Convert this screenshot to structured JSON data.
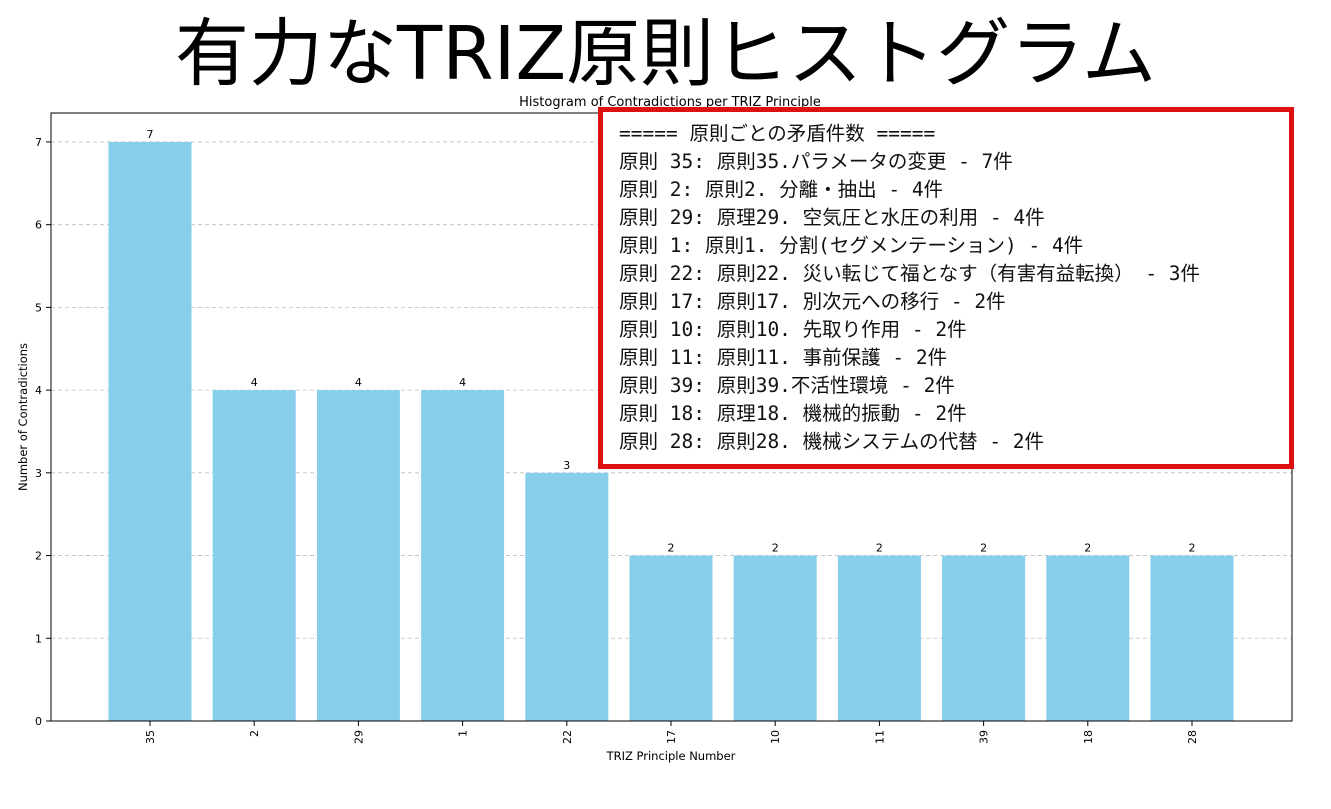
{
  "page_title": "有力なTRIZ原則ヒストグラム",
  "chart_data": {
    "type": "bar",
    "title": "Histogram of Contradictions per TRIZ Principle",
    "xlabel": "TRIZ Principle Number",
    "ylabel": "Number of Contradictions",
    "categories": [
      "35",
      "2",
      "29",
      "1",
      "22",
      "17",
      "10",
      "11",
      "39",
      "18",
      "28"
    ],
    "values": [
      7,
      4,
      4,
      4,
      3,
      2,
      2,
      2,
      2,
      2,
      2
    ],
    "ylim": [
      0,
      7.35
    ],
    "yticks": [
      0,
      1,
      2,
      3,
      4,
      5,
      6,
      7
    ],
    "grid": "y dashed",
    "bar_color": "#87ceeb"
  },
  "summary_box": {
    "border_color": "#e01010",
    "lines": [
      "===== 原則ごとの矛盾件数 =====",
      "原則 35: 原則35.パラメータの変更 - 7件",
      "原則 2: 原則2. 分離・抽出 - 4件",
      "原則 29: 原理29. 空気圧と水圧の利用 - 4件",
      "原則 1: 原則1. 分割(セグメンテーション) - 4件",
      "原則 22: 原則22. 災い転じて福となす（有害有益転換） - 3件",
      "原則 17: 原則17. 別次元への移行 - 2件",
      "原則 10: 原則10. 先取り作用 - 2件",
      "原則 11: 原則11. 事前保護 - 2件",
      "原則 39: 原則39.不活性環境 - 2件",
      "原則 18: 原理18. 機械的振動 - 2件",
      "原則 28: 原則28. 機械システムの代替 - 2件"
    ]
  }
}
